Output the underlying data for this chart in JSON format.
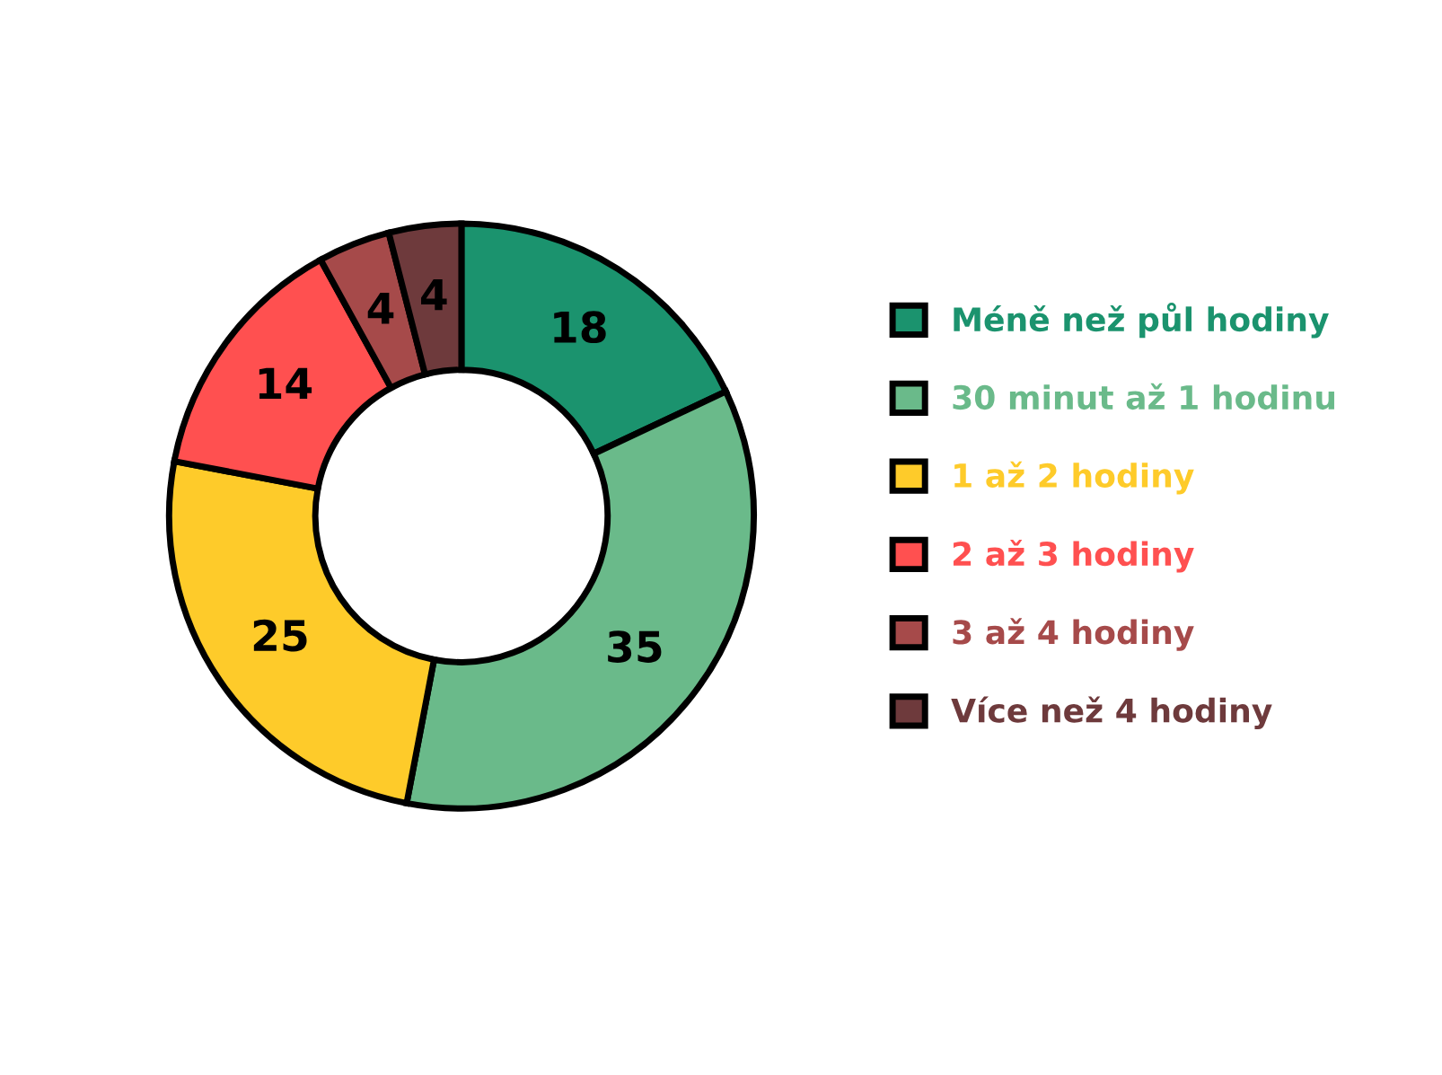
{
  "chart_data": {
    "type": "donut",
    "categories": [
      "Méně než půl hodiny",
      "30 minut až 1 hodinu",
      "1 až 2 hodiny",
      "2 až 3 hodiny",
      "3 až 4 hodiny",
      "Více než 4 hodiny"
    ],
    "values": [
      18,
      35,
      25,
      14,
      4,
      4
    ],
    "colors": [
      "#1b936e",
      "#6aba8a",
      "#fecb2a",
      "#ff5050",
      "#a64a4a",
      "#6e3a3c"
    ],
    "data_labels": true,
    "legend": "right"
  }
}
